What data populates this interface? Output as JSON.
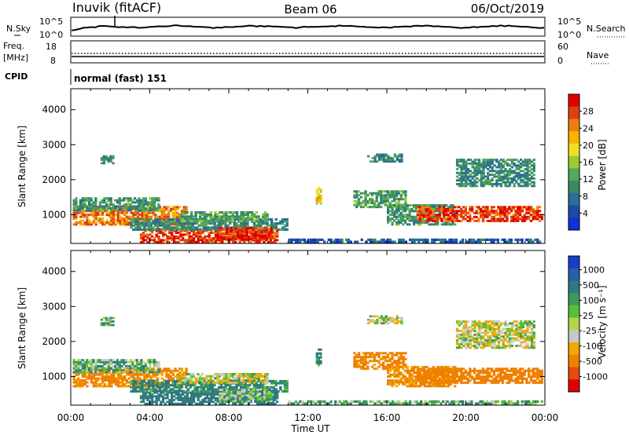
{
  "header": {
    "station": "Inuvik (fitACF)",
    "beam": "Beam 06",
    "date": "06/Oct/2019"
  },
  "top_panels": {
    "nsky_label": "N.Sky",
    "nsky_ticks": [
      "10^5",
      "10^0"
    ],
    "nsearch_label": "N.Search",
    "nsearch_ticks": [
      "10^5",
      "10^0"
    ],
    "freq_label_1": "Freq.",
    "freq_label_2": "[MHz]",
    "freq_ticks": [
      "18",
      "8"
    ],
    "nave_label": "Nave",
    "nave_ticks": [
      "60",
      "0"
    ],
    "cpid_label": "CPID",
    "cpid_text": "normal (fast) 151"
  },
  "colors": {
    "power_scale": [
      "#1030d8",
      "#1e4aa8",
      "#2a6f9a",
      "#3a8a62",
      "#54a85a",
      "#9acd32",
      "#f0e020",
      "#f5b400",
      "#ee7d10",
      "#e03e0c",
      "#e00000"
    ],
    "velocity_scale": [
      "#1a3ec8",
      "#2660a8",
      "#2e7a80",
      "#3c9a5a",
      "#58c038",
      "#b4d44a",
      "#c8c8c8",
      "#f0a800",
      "#f08000",
      "#e84a10",
      "#e00000"
    ]
  },
  "chart_data": [
    {
      "type": "heatmap",
      "name": "power",
      "ylabel": "Slant Range [km]",
      "xlabel": "Time UT",
      "x_ticks": [
        "00:00",
        "04:00",
        "08:00",
        "12:00",
        "16:00",
        "20:00",
        "00:00"
      ],
      "x_range_hours": [
        0,
        24
      ],
      "y_ticks": [
        1000,
        2000,
        3000,
        4000
      ],
      "ylim": [
        180,
        4600
      ],
      "colorbar": {
        "label": "Power [dB]",
        "ticks": [
          "4",
          "8",
          "12",
          "16",
          "20",
          "24",
          "28"
        ],
        "range": [
          0,
          32
        ]
      },
      "regions": [
        {
          "t0": 0.1,
          "t1": 5.9,
          "r0": 700,
          "r1": 1250,
          "v": 25
        },
        {
          "t0": 0.1,
          "t1": 4.5,
          "r0": 1100,
          "r1": 1500,
          "v": 11
        },
        {
          "t0": 3.5,
          "t1": 10.5,
          "r0": 200,
          "r1": 620,
          "v": 28
        },
        {
          "t0": 3.0,
          "t1": 11.0,
          "r0": 550,
          "r1": 900,
          "v": 10
        },
        {
          "t0": 5.5,
          "t1": 10.0,
          "r0": 800,
          "r1": 1100,
          "v": 12
        },
        {
          "t0": 7.5,
          "t1": 10.2,
          "r0": 280,
          "r1": 650,
          "v": 29
        },
        {
          "t0": 11.0,
          "t1": 23.9,
          "r0": 200,
          "r1": 320,
          "v": 6
        },
        {
          "t0": 12.4,
          "t1": 12.7,
          "r0": 1300,
          "r1": 1800,
          "v": 20
        },
        {
          "t0": 14.3,
          "t1": 17.0,
          "r0": 1200,
          "r1": 1700,
          "v": 12
        },
        {
          "t0": 16.0,
          "t1": 19.5,
          "r0": 700,
          "r1": 1300,
          "v": 11
        },
        {
          "t0": 17.5,
          "t1": 23.9,
          "r0": 800,
          "r1": 1250,
          "v": 28
        },
        {
          "t0": 15.0,
          "t1": 16.8,
          "r0": 2500,
          "r1": 2750,
          "v": 10
        },
        {
          "t0": 19.5,
          "t1": 23.5,
          "r0": 1800,
          "r1": 2600,
          "v": 10
        },
        {
          "t0": 1.5,
          "t1": 2.2,
          "r0": 2450,
          "r1": 2700,
          "v": 10
        }
      ]
    },
    {
      "type": "heatmap",
      "name": "velocity",
      "ylabel": "Slant Range [km]",
      "xlabel": "Time UT",
      "x_ticks": [
        "00:00",
        "04:00",
        "08:00",
        "12:00",
        "16:00",
        "20:00",
        "00:00"
      ],
      "x_range_hours": [
        0,
        24
      ],
      "y_ticks": [
        1000,
        2000,
        3000,
        4000
      ],
      "ylim": [
        180,
        4600
      ],
      "colorbar": {
        "label": "Velocity [m s⁻¹]",
        "ticks": [
          "1000",
          "500",
          "100",
          "25",
          "-25",
          "-100",
          "-500",
          "-1000"
        ],
        "range": [
          -1000,
          1000
        ]
      },
      "regions": [
        {
          "t0": 0.1,
          "t1": 5.9,
          "r0": 700,
          "r1": 1250,
          "v": -150
        },
        {
          "t0": 0.1,
          "t1": 4.5,
          "r0": 1100,
          "r1": 1500,
          "v": 60
        },
        {
          "t0": 3.5,
          "t1": 10.5,
          "r0": 200,
          "r1": 620,
          "v": 200
        },
        {
          "t0": 3.0,
          "t1": 11.0,
          "r0": 550,
          "r1": 900,
          "v": 120
        },
        {
          "t0": 5.5,
          "t1": 10.0,
          "r0": 800,
          "r1": 1100,
          "v": 0
        },
        {
          "t0": 7.5,
          "t1": 10.2,
          "r0": 280,
          "r1": 650,
          "v": 50
        },
        {
          "t0": 11.0,
          "t1": 23.9,
          "r0": 200,
          "r1": 320,
          "v": 60
        },
        {
          "t0": 12.4,
          "t1": 12.7,
          "r0": 1300,
          "r1": 1800,
          "v": 120
        },
        {
          "t0": 14.3,
          "t1": 17.0,
          "r0": 1200,
          "r1": 1700,
          "v": -150
        },
        {
          "t0": 16.0,
          "t1": 19.5,
          "r0": 700,
          "r1": 1300,
          "v": -120
        },
        {
          "t0": 17.5,
          "t1": 23.9,
          "r0": 800,
          "r1": 1250,
          "v": -200
        },
        {
          "t0": 15.0,
          "t1": 16.8,
          "r0": 2500,
          "r1": 2750,
          "v": 0
        },
        {
          "t0": 19.5,
          "t1": 23.5,
          "r0": 1800,
          "r1": 2600,
          "v": 0
        },
        {
          "t0": 1.5,
          "t1": 2.2,
          "r0": 2450,
          "r1": 2700,
          "v": 60
        }
      ]
    }
  ]
}
